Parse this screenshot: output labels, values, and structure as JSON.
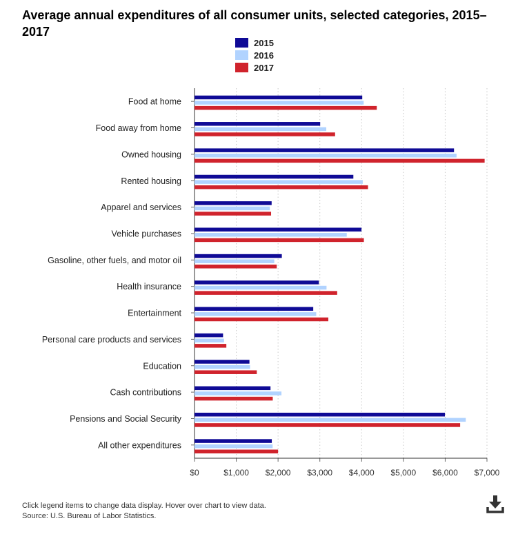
{
  "title": "Average annual expenditures of all consumer units, selected categories, 2015–2017",
  "legend": [
    {
      "label": "2015",
      "color": "#0f0a96"
    },
    {
      "label": "2016",
      "color": "#b1d3ff"
    },
    {
      "label": "2017",
      "color": "#d0232c"
    }
  ],
  "chart_data": {
    "type": "bar",
    "orientation": "horizontal",
    "categories": [
      "Food at home",
      "Food away from home",
      "Owned housing",
      "Rented housing",
      "Apparel and services",
      "Vehicle purchases",
      "Gasoline, other fuels, and motor oil",
      "Health insurance",
      "Entertainment",
      "Personal care products and services",
      "Education",
      "Cash contributions",
      "Pensions and Social Security",
      "All other expenditures"
    ],
    "series": [
      {
        "name": "2015",
        "color": "#0f0a96",
        "values": [
          4015,
          3008,
          6211,
          3802,
          1846,
          3997,
          2090,
          2977,
          2842,
          683,
          1315,
          1819,
          5994,
          1850
        ]
      },
      {
        "name": "2016",
        "color": "#b1d3ff",
        "values": [
          4049,
          3154,
          6272,
          4027,
          1803,
          3644,
          1909,
          3160,
          2913,
          707,
          1329,
          2081,
          6493,
          1870
        ]
      },
      {
        "name": "2017",
        "color": "#d0232c",
        "values": [
          4363,
          3365,
          6944,
          4153,
          1833,
          4054,
          1968,
          3415,
          3203,
          762,
          1491,
          1873,
          6358,
          2000
        ]
      }
    ],
    "xlim": [
      0,
      7000
    ],
    "x_ticks": [
      "$0",
      "$1,000",
      "$2,000",
      "$3,000",
      "$4,000",
      "$5,000",
      "$6,000",
      "$7,000"
    ],
    "grid": "vertical dotted",
    "legend_position": "top-center",
    "xlabel": "",
    "ylabel": ""
  },
  "footer": {
    "note": "Click legend items to change data display. Hover over chart to view data.",
    "source": "Source: U.S. Bureau of Labor Statistics."
  },
  "download_icon": "download-icon"
}
